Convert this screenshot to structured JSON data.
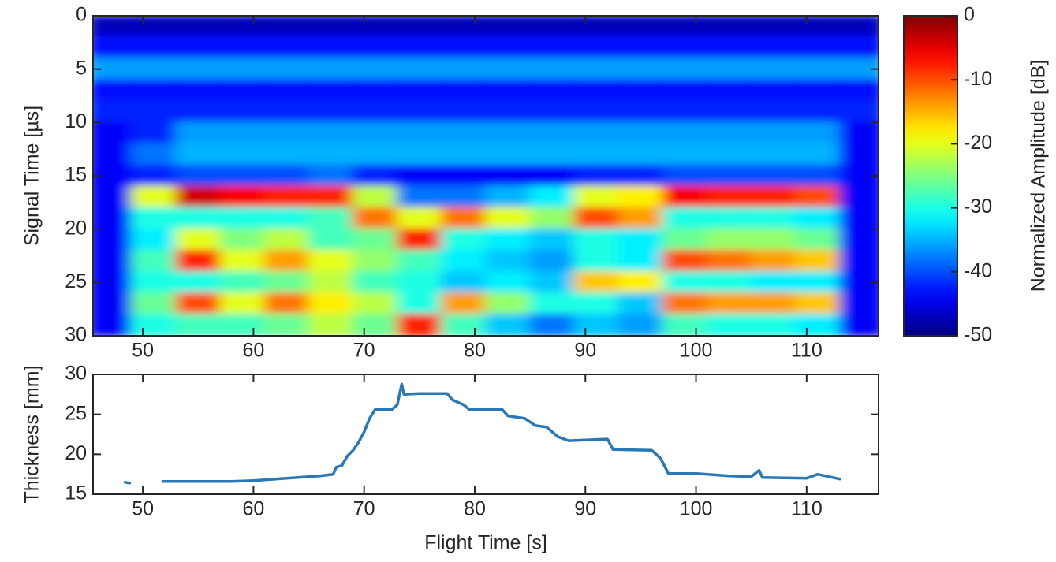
{
  "chart_data": [
    {
      "type": "heatmap",
      "ylabel": "Signal Time [µs]",
      "x": [
        47,
        51,
        55,
        59,
        63,
        67,
        71,
        75,
        79,
        83,
        87,
        91,
        95,
        99,
        103,
        107,
        111,
        115
      ],
      "y": [
        1,
        3,
        5,
        7,
        9,
        11,
        13,
        15,
        17,
        19,
        21,
        23,
        25,
        27,
        29
      ],
      "z": [
        [
          -47,
          -47,
          -47,
          -47,
          -47,
          -47,
          -47,
          -47,
          -47,
          -47,
          -47,
          -47,
          -47,
          -47,
          -47,
          -47,
          -47,
          -47
        ],
        [
          -43,
          -43,
          -43,
          -43,
          -43,
          -43,
          -43,
          -43,
          -43,
          -43,
          -43,
          -43,
          -43,
          -43,
          -43,
          -43,
          -43,
          -43
        ],
        [
          -36,
          -36,
          -36,
          -36,
          -36,
          -36,
          -36,
          -36,
          -36,
          -36,
          -36,
          -36,
          -36,
          -36,
          -36,
          -36,
          -36,
          -36
        ],
        [
          -43,
          -43,
          -43,
          -43,
          -43,
          -43,
          -43,
          -43,
          -43,
          -43,
          -43,
          -43,
          -43,
          -43,
          -43,
          -43,
          -43,
          -43
        ],
        [
          -42,
          -42,
          -42,
          -42,
          -42,
          -42,
          -42,
          -42,
          -42,
          -42,
          -42,
          -42,
          -42,
          -42,
          -42,
          -42,
          -42,
          -42
        ],
        [
          -44,
          -42,
          -36,
          -36,
          -36,
          -36,
          -36,
          -36,
          -36,
          -36,
          -36,
          -36,
          -36,
          -36,
          -36,
          -36,
          -36,
          -44
        ],
        [
          -44,
          -38,
          -35,
          -35,
          -35,
          -35,
          -35,
          -35,
          -35,
          -35,
          -35,
          -35,
          -35,
          -35,
          -35,
          -35,
          -35,
          -44
        ],
        [
          -44,
          -42,
          -40,
          -40,
          -40,
          -38,
          -42,
          -44,
          -44,
          -44,
          -44,
          -42,
          -42,
          -40,
          -40,
          -40,
          -40,
          -44
        ],
        [
          -44,
          -20,
          -4,
          -6,
          -8,
          -8,
          -22,
          -38,
          -38,
          -35,
          -32,
          -20,
          -18,
          -6,
          -8,
          -8,
          -10,
          -44
        ],
        [
          -44,
          -30,
          -30,
          -30,
          -30,
          -28,
          -12,
          -20,
          -12,
          -20,
          -24,
          -10,
          -14,
          -30,
          -30,
          -30,
          -32,
          -44
        ],
        [
          -44,
          -32,
          -20,
          -25,
          -22,
          -28,
          -26,
          -8,
          -30,
          -32,
          -34,
          -30,
          -32,
          -26,
          -24,
          -24,
          -26,
          -44
        ],
        [
          -44,
          -28,
          -8,
          -20,
          -14,
          -20,
          -24,
          -28,
          -32,
          -34,
          -36,
          -30,
          -32,
          -10,
          -12,
          -14,
          -16,
          -44
        ],
        [
          -44,
          -30,
          -30,
          -28,
          -26,
          -22,
          -28,
          -30,
          -34,
          -32,
          -34,
          -16,
          -18,
          -30,
          -30,
          -32,
          -32,
          -44
        ],
        [
          -44,
          -26,
          -10,
          -20,
          -12,
          -18,
          -22,
          -30,
          -14,
          -24,
          -30,
          -30,
          -34,
          -12,
          -14,
          -14,
          -16,
          -44
        ],
        [
          -44,
          -30,
          -28,
          -28,
          -26,
          -22,
          -26,
          -8,
          -28,
          -34,
          -38,
          -34,
          -36,
          -28,
          -30,
          -30,
          -32,
          -44
        ]
      ],
      "xlim": [
        45.5,
        116.5
      ],
      "ylim": [
        30,
        0
      ],
      "xticks": [
        50,
        60,
        70,
        80,
        90,
        100,
        110
      ],
      "yticks": [
        0,
        5,
        10,
        15,
        20,
        25,
        30
      ],
      "colormap": "jet",
      "clim": [
        -50,
        0
      ],
      "cticks": [
        0,
        -10,
        -20,
        -30,
        -40,
        -50
      ],
      "colorbar_label": "Normalized Amplitude [dB]"
    },
    {
      "type": "line",
      "xlabel": "Flight Time [s]",
      "ylabel": "Thickness [mm]",
      "x": [
        48.4,
        48.8,
        50,
        51.8,
        55,
        58,
        60,
        62,
        64,
        66,
        67.2,
        67.5,
        68,
        68.5,
        69,
        69.5,
        70,
        70.5,
        71,
        72.5,
        73,
        73.4,
        73.6,
        75,
        77.5,
        78,
        79,
        79.5,
        82.5,
        83,
        84.5,
        85.5,
        86.5,
        87.5,
        88.5,
        92,
        92.5,
        96,
        96.8,
        97.5,
        100,
        103,
        105,
        105.7,
        106,
        110,
        111,
        113
      ],
      "series": [
        {
          "color": "#2b78b6",
          "values": [
            16.5,
            16.4,
            null,
            16.6,
            16.6,
            16.6,
            16.7,
            16.9,
            17.1,
            17.3,
            17.5,
            18.4,
            18.6,
            19.8,
            20.5,
            21.5,
            22.8,
            24.5,
            25.6,
            25.6,
            26.2,
            28.8,
            27.5,
            27.6,
            27.6,
            26.8,
            26.2,
            25.6,
            25.6,
            24.8,
            24.5,
            23.6,
            23.4,
            22.2,
            21.7,
            21.9,
            20.6,
            20.5,
            19.5,
            17.6,
            17.6,
            17.3,
            17.2,
            18,
            17.1,
            17,
            17.5,
            16.9
          ]
        }
      ],
      "xlim": [
        45.5,
        116.5
      ],
      "ylim": [
        15,
        30
      ],
      "xticks": [
        50,
        60,
        70,
        80,
        90,
        100,
        110
      ],
      "yticks": [
        15,
        20,
        25,
        30
      ]
    }
  ]
}
